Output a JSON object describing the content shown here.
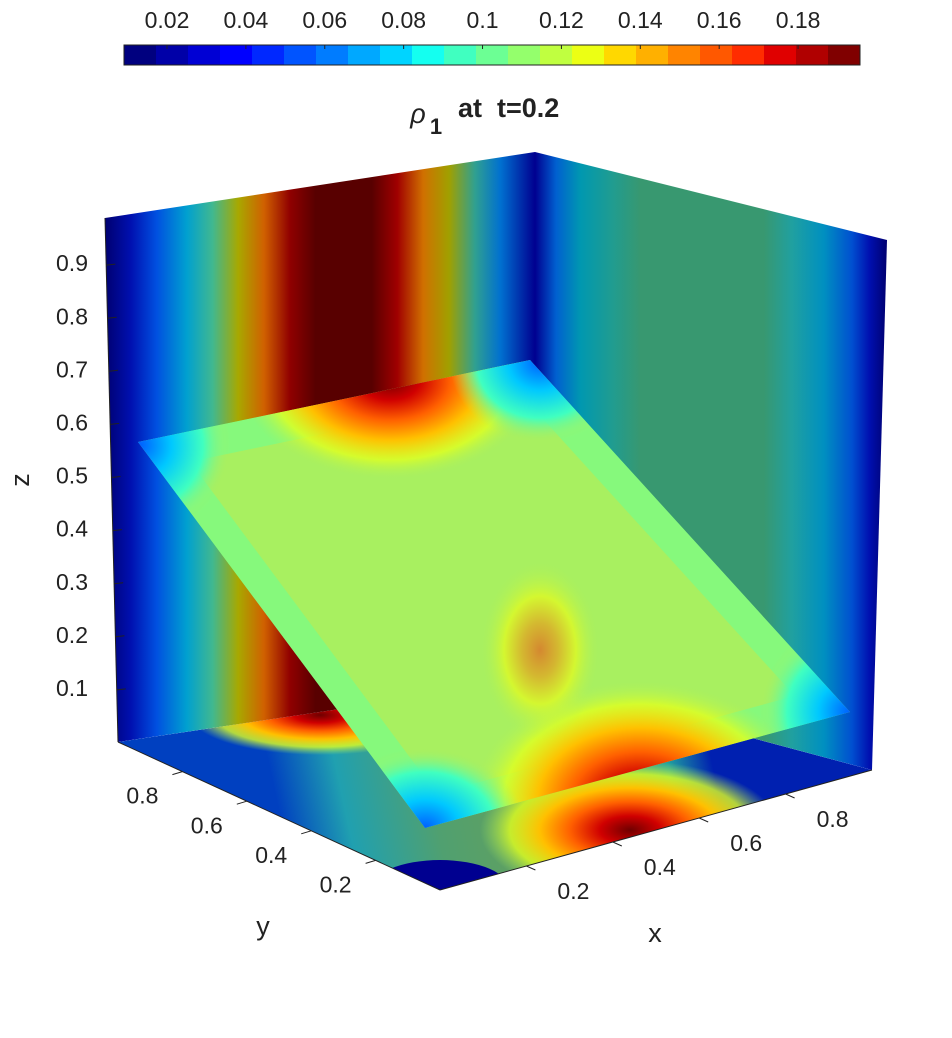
{
  "chart_data": {
    "type": "slice3d",
    "title": {
      "symbol": "ρ",
      "subscript": "1",
      "text": "at  t=0.2"
    },
    "colorbar": {
      "clim": [
        0.0091,
        0.1957
      ],
      "ticks": [
        0.02,
        0.04,
        0.06,
        0.08,
        0.1,
        0.12,
        0.14,
        0.16,
        0.18
      ],
      "colormap": [
        "#00007f",
        "#0000a8",
        "#0000d4",
        "#0000ff",
        "#0028ff",
        "#0054ff",
        "#007cff",
        "#00a8ff",
        "#00d4ff",
        "#14fff0",
        "#40ffc0",
        "#6cff94",
        "#94ff6c",
        "#c0ff40",
        "#ecff14",
        "#ffd800",
        "#ffb000",
        "#ff8400",
        "#ff5800",
        "#ff2c00",
        "#e00000",
        "#b00000",
        "#800000"
      ]
    },
    "xlabel": "x",
    "ylabel": "y",
    "zlabel": "z",
    "xlim": [
      0,
      1
    ],
    "ylim": [
      0,
      1
    ],
    "zlim": [
      0,
      1
    ],
    "xticks": [
      0.2,
      0.4,
      0.6,
      0.8
    ],
    "yticks": [
      0.2,
      0.4,
      0.6,
      0.8
    ],
    "zticks": [
      0.1,
      0.2,
      0.3,
      0.4,
      0.5,
      0.6,
      0.7,
      0.8,
      0.9
    ]
  }
}
